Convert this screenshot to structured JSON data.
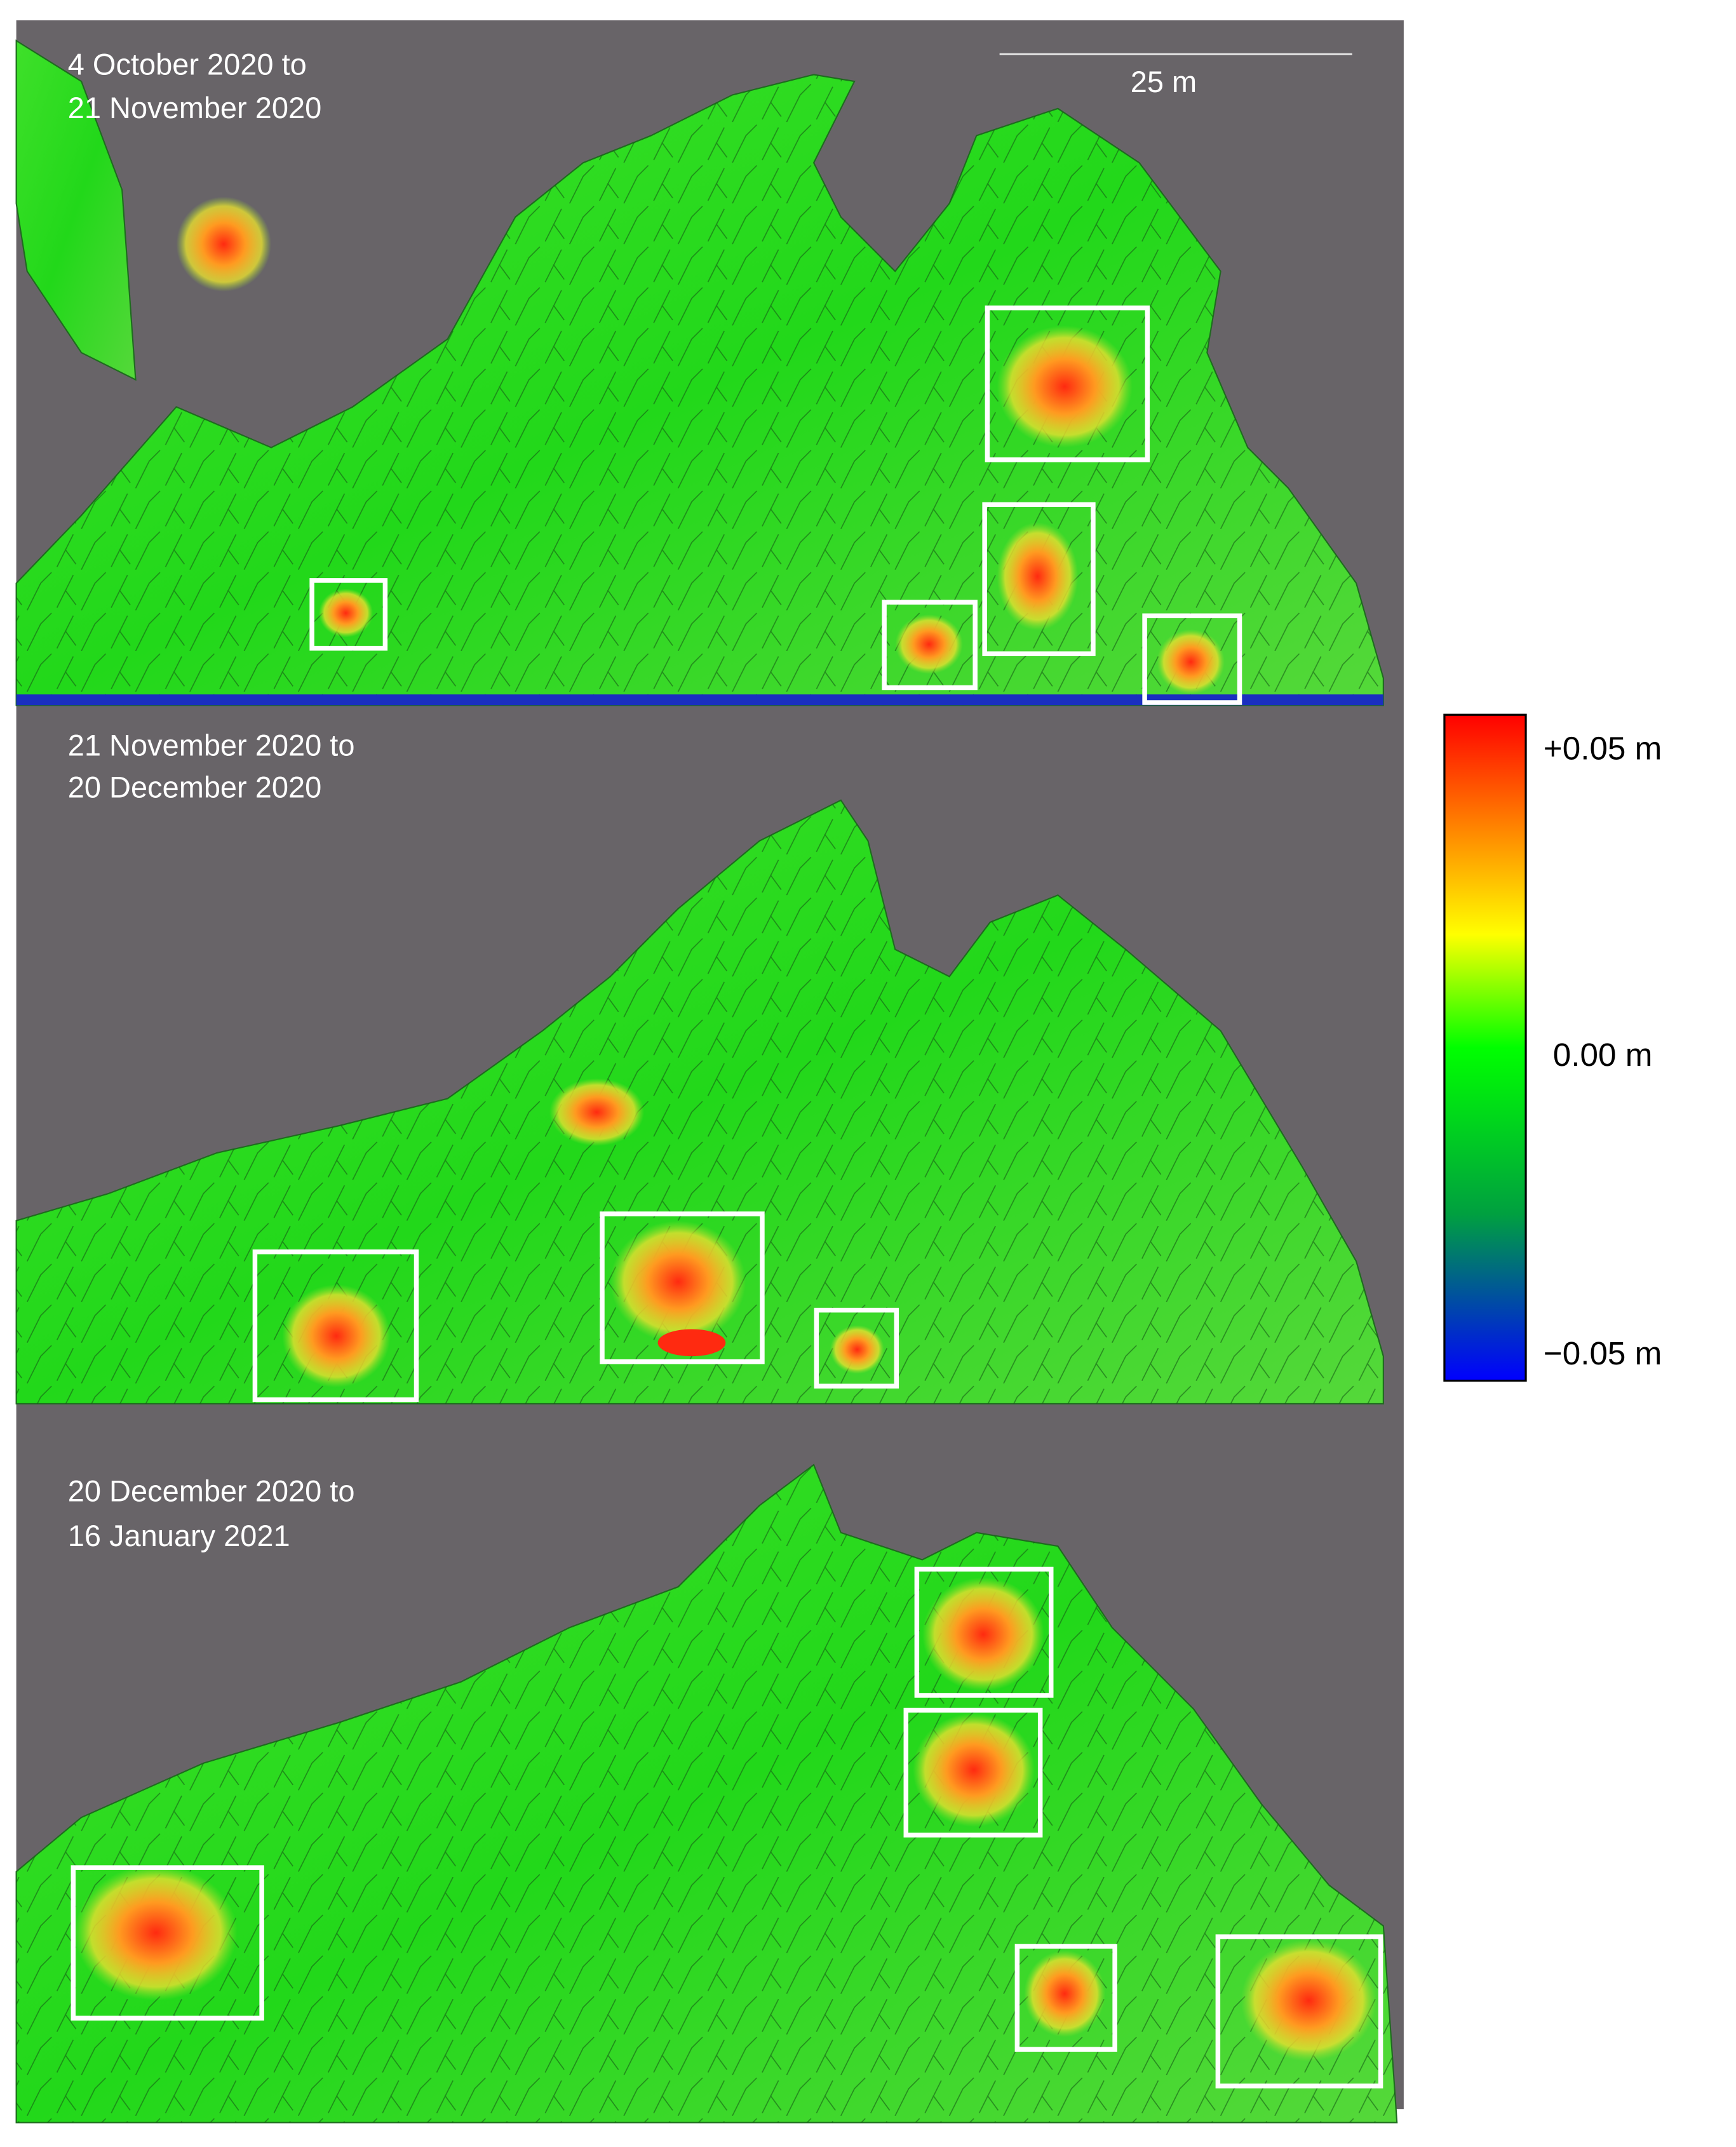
{
  "panels": [
    {
      "label": [
        "4 October 2020 to",
        "21 November 2020"
      ]
    },
    {
      "label": [
        "21 November 2020 to",
        "20 December 2020"
      ]
    },
    {
      "label": [
        "20 December 2020 to",
        "16 January 2021"
      ]
    }
  ],
  "scale_bar": {
    "label": "25 m"
  },
  "colorbar": {
    "labels": [
      "+0.05 m",
      "0.00 m",
      "−0.05 m"
    ]
  }
}
